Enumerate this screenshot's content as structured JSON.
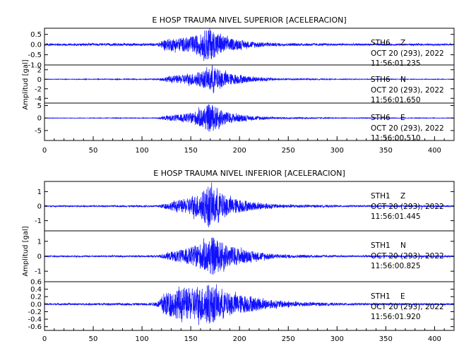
{
  "chart_data": [
    {
      "type": "line",
      "title": "E HOSP TRAUMA NIVEL SUPERIOR [ACELERACION]",
      "ylabel": "Amplitud [gal]",
      "xlim": [
        0,
        420
      ],
      "x_ticks": [
        0,
        50,
        100,
        150,
        200,
        250,
        300,
        350,
        400
      ],
      "series": [
        {
          "station": "STH6",
          "component": "Z",
          "date": "OCT 20 (293), 2022",
          "time": "11:56:01.235",
          "ylim": [
            -1.0,
            0.8
          ],
          "y_ticks": [
            -1.0,
            -0.5,
            0.0,
            0.5
          ],
          "y_tick_labels": [
            "-1.0",
            "-0.5",
            "0.0",
            "0.5"
          ],
          "noise_amplitude": 0.05,
          "envelope": [
            [
              0,
              0.05
            ],
            [
              115,
              0.06
            ],
            [
              125,
              0.28
            ],
            [
              145,
              0.35
            ],
            [
              160,
              0.5
            ],
            [
              168,
              0.85
            ],
            [
              175,
              0.6
            ],
            [
              190,
              0.3
            ],
            [
              210,
              0.15
            ],
            [
              240,
              0.07
            ],
            [
              300,
              0.05
            ],
            [
              420,
              0.04
            ]
          ]
        },
        {
          "station": "STH6",
          "component": "N",
          "date": "OCT 20 (293), 2022",
          "time": "11:56:01.650",
          "ylim": [
            -5,
            3
          ],
          "y_ticks": [
            -4,
            -2,
            0,
            2
          ],
          "y_tick_labels": [
            "-4",
            "-2",
            "0",
            "2"
          ],
          "noise_amplitude": 0.05,
          "envelope": [
            [
              0,
              0.05
            ],
            [
              115,
              0.1
            ],
            [
              125,
              0.5
            ],
            [
              150,
              1.2
            ],
            [
              165,
              1.8
            ],
            [
              172,
              2.6
            ],
            [
              180,
              2.0
            ],
            [
              190,
              1.2
            ],
            [
              210,
              0.6
            ],
            [
              240,
              0.2
            ],
            [
              300,
              0.08
            ],
            [
              420,
              0.05
            ]
          ]
        },
        {
          "station": "STH6",
          "component": "E",
          "date": "OCT 20 (293), 2022",
          "time": "11:56:00.510",
          "ylim": [
            -9,
            6
          ],
          "y_ticks": [
            -5,
            0,
            5
          ],
          "y_tick_labels": [
            "-5",
            "0",
            "5"
          ],
          "noise_amplitude": 0.08,
          "envelope": [
            [
              0,
              0.08
            ],
            [
              115,
              0.15
            ],
            [
              125,
              0.9
            ],
            [
              150,
              2.0
            ],
            [
              165,
              4.5
            ],
            [
              170,
              6.0
            ],
            [
              178,
              4.0
            ],
            [
              190,
              2.0
            ],
            [
              210,
              0.9
            ],
            [
              240,
              0.35
            ],
            [
              300,
              0.15
            ],
            [
              420,
              0.1
            ]
          ]
        }
      ]
    },
    {
      "type": "line",
      "title": "E HOSP TRAUMA NIVEL INFERIOR [ACELERACION]",
      "ylabel": "Amplitud [gal]",
      "xlim": [
        0,
        420
      ],
      "x_ticks": [
        0,
        50,
        100,
        150,
        200,
        250,
        300,
        350,
        400
      ],
      "series": [
        {
          "station": "STH1",
          "component": "Z",
          "date": "OCT 20 (293), 2022",
          "time": "11:56:01.445",
          "ylim": [
            -1.7,
            1.7
          ],
          "y_ticks": [
            -1,
            0,
            1
          ],
          "y_tick_labels": [
            "-1",
            "0",
            "1"
          ],
          "noise_amplitude": 0.04,
          "envelope": [
            [
              0,
              0.04
            ],
            [
              115,
              0.06
            ],
            [
              125,
              0.2
            ],
            [
              145,
              0.5
            ],
            [
              160,
              0.9
            ],
            [
              168,
              1.4
            ],
            [
              175,
              1.1
            ],
            [
              190,
              0.6
            ],
            [
              210,
              0.3
            ],
            [
              240,
              0.12
            ],
            [
              300,
              0.06
            ],
            [
              420,
              0.05
            ]
          ]
        },
        {
          "station": "STH1",
          "component": "N",
          "date": "OCT 20 (293), 2022",
          "time": "11:56:00.825",
          "ylim": [
            -1.7,
            1.7
          ],
          "y_ticks": [
            -1,
            0,
            1
          ],
          "y_tick_labels": [
            "-1",
            "0",
            "1"
          ],
          "noise_amplitude": 0.04,
          "envelope": [
            [
              0,
              0.04
            ],
            [
              115,
              0.06
            ],
            [
              125,
              0.2
            ],
            [
              150,
              0.6
            ],
            [
              165,
              1.0
            ],
            [
              172,
              1.3
            ],
            [
              180,
              1.0
            ],
            [
              190,
              0.7
            ],
            [
              210,
              0.35
            ],
            [
              240,
              0.12
            ],
            [
              300,
              0.06
            ],
            [
              420,
              0.05
            ]
          ]
        },
        {
          "station": "STH1",
          "component": "E",
          "date": "OCT 20 (293), 2022",
          "time": "11:56:01.920",
          "ylim": [
            -0.7,
            0.6
          ],
          "y_ticks": [
            -0.6,
            -0.4,
            -0.2,
            0.0,
            0.2,
            0.4,
            0.6
          ],
          "y_tick_labels": [
            "-0.6",
            "-0.4",
            "-0.2",
            "0.0",
            "0.2",
            "0.4",
            "0.6"
          ],
          "noise_amplitude": 0.02,
          "envelope": [
            [
              0,
              0.02
            ],
            [
              110,
              0.03
            ],
            [
              118,
              0.1
            ],
            [
              122,
              0.3
            ],
            [
              140,
              0.4
            ],
            [
              160,
              0.45
            ],
            [
              168,
              0.55
            ],
            [
              180,
              0.35
            ],
            [
              200,
              0.25
            ],
            [
              230,
              0.12
            ],
            [
              260,
              0.06
            ],
            [
              300,
              0.03
            ],
            [
              420,
              0.02
            ]
          ]
        }
      ]
    }
  ]
}
